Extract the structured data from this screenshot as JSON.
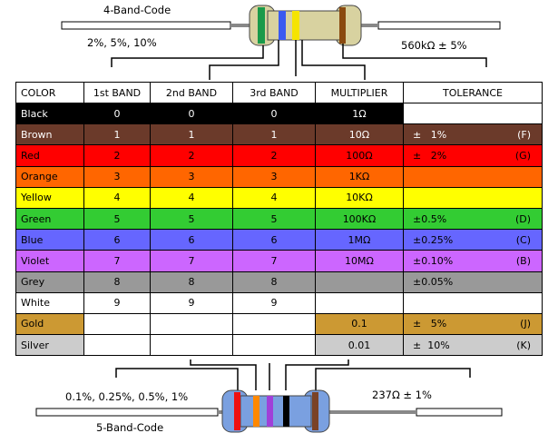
{
  "top": {
    "title": "4-Band-Code",
    "left_caption": "2%, 5%, 10%",
    "right_caption": "560kΩ ± 5%",
    "band_colors": [
      "#1a9a4a",
      "#3a5af0",
      "#f5e400",
      "#8a4a10"
    ]
  },
  "bottom": {
    "title": "5-Band-Code",
    "left_caption": "0.1%, 0.25%, 0.5%, 1%",
    "right_caption": "237Ω ± 1%",
    "band_colors": [
      "#ee1010",
      "#ff8800",
      "#a040d8",
      "#000000",
      "#7a4226"
    ]
  },
  "table": {
    "headers": [
      "COLOR",
      "1st BAND",
      "2nd BAND",
      "3rd BAND",
      "MULTIPLIER",
      "TOLERANCE"
    ],
    "rows": [
      {
        "name": "Black",
        "b1": "0",
        "b2": "0",
        "b3": "0",
        "mult": "1Ω",
        "tol": "",
        "code": "",
        "color": "#000000",
        "text": "#ffffff",
        "c1": "#000000",
        "c2": "#000000",
        "c3": "#000000",
        "cm": "#000000",
        "ct": "#ffffff"
      },
      {
        "name": "Brown",
        "b1": "1",
        "b2": "1",
        "b3": "1",
        "mult": "10Ω",
        "tol": "±   1%",
        "code": "(F)",
        "color": "#6b3a2a",
        "text": "#ffffff",
        "c1": "#6b3a2a",
        "c2": "#6b3a2a",
        "c3": "#6b3a2a",
        "cm": "#6b3a2a",
        "ct": "#6b3a2a"
      },
      {
        "name": "Red",
        "b1": "2",
        "b2": "2",
        "b3": "2",
        "mult": "100Ω",
        "tol": "±   2%",
        "code": "(G)",
        "color": "#ff0000",
        "text": "#000000",
        "c1": "#ff0000",
        "c2": "#ff0000",
        "c3": "#ff0000",
        "cm": "#ff0000",
        "ct": "#ff0000"
      },
      {
        "name": "Orange",
        "b1": "3",
        "b2": "3",
        "b3": "3",
        "mult": "1KΩ",
        "tol": "",
        "code": "",
        "color": "#ff6600",
        "text": "#000000",
        "c1": "#ff6600",
        "c2": "#ff6600",
        "c3": "#ff6600",
        "cm": "#ff6600",
        "ct": "#ff6600"
      },
      {
        "name": "Yellow",
        "b1": "4",
        "b2": "4",
        "b3": "4",
        "mult": "10KΩ",
        "tol": "",
        "code": "",
        "color": "#ffff00",
        "text": "#000000",
        "c1": "#ffff00",
        "c2": "#ffff00",
        "c3": "#ffff00",
        "cm": "#ffff00",
        "ct": "#ffff00"
      },
      {
        "name": "Green",
        "b1": "5",
        "b2": "5",
        "b3": "5",
        "mult": "100KΩ",
        "tol": "±0.5%",
        "code": "(D)",
        "color": "#33cc33",
        "text": "#000000",
        "c1": "#33cc33",
        "c2": "#33cc33",
        "c3": "#33cc33",
        "cm": "#33cc33",
        "ct": "#33cc33"
      },
      {
        "name": "Blue",
        "b1": "6",
        "b2": "6",
        "b3": "6",
        "mult": "1MΩ",
        "tol": "±0.25%",
        "code": "(C)",
        "color": "#6666ff",
        "text": "#000000",
        "c1": "#6666ff",
        "c2": "#6666ff",
        "c3": "#6666ff",
        "cm": "#6666ff",
        "ct": "#6666ff"
      },
      {
        "name": "Violet",
        "b1": "7",
        "b2": "7",
        "b3": "7",
        "mult": "10MΩ",
        "tol": "±0.10%",
        "code": "(B)",
        "color": "#cc66ff",
        "text": "#000000",
        "c1": "#cc66ff",
        "c2": "#cc66ff",
        "c3": "#cc66ff",
        "cm": "#cc66ff",
        "ct": "#cc66ff"
      },
      {
        "name": "Grey",
        "b1": "8",
        "b2": "8",
        "b3": "8",
        "mult": "",
        "tol": "±0.05%",
        "code": "",
        "color": "#999999",
        "text": "#000000",
        "c1": "#999999",
        "c2": "#999999",
        "c3": "#999999",
        "cm": "#999999",
        "ct": "#999999"
      },
      {
        "name": "White",
        "b1": "9",
        "b2": "9",
        "b3": "9",
        "mult": "",
        "tol": "",
        "code": "",
        "color": "#ffffff",
        "text": "#000000",
        "c1": "#ffffff",
        "c2": "#ffffff",
        "c3": "#ffffff",
        "cm": "#ffffff",
        "ct": "#ffffff"
      },
      {
        "name": "Gold",
        "b1": "",
        "b2": "",
        "b3": "",
        "mult": "0.1",
        "tol": "±   5%",
        "code": "(J)",
        "color": "#cc9933",
        "text": "#000000",
        "c1": "#ffffff",
        "c2": "#ffffff",
        "c3": "#ffffff",
        "cm": "#cc9933",
        "ct": "#cc9933"
      },
      {
        "name": "Silver",
        "b1": "",
        "b2": "",
        "b3": "",
        "mult": "0.01",
        "tol": "±  10%",
        "code": "(K)",
        "color": "#cccccc",
        "text": "#000000",
        "c1": "#ffffff",
        "c2": "#ffffff",
        "c3": "#ffffff",
        "cm": "#cccccc",
        "ct": "#cccccc"
      }
    ]
  }
}
